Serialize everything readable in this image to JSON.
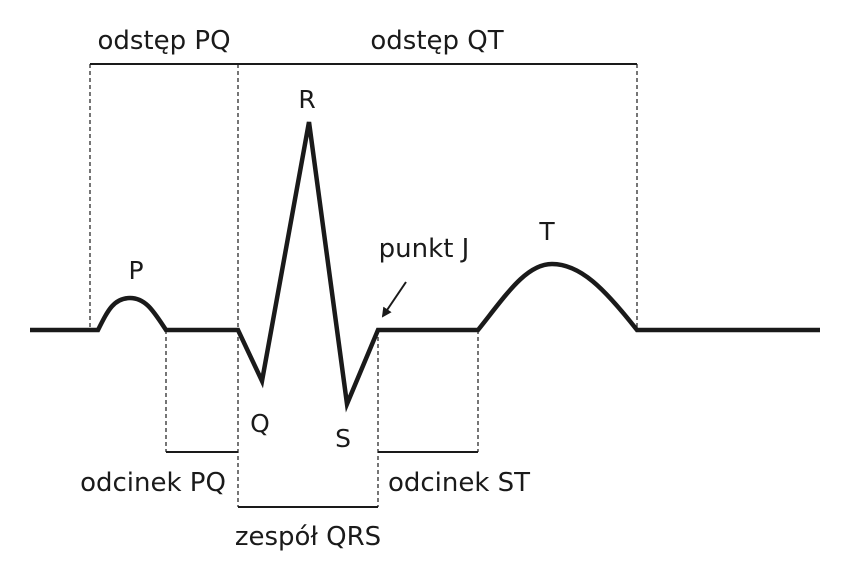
{
  "diagram": {
    "intervals": {
      "pq": "odstęp PQ",
      "qt": "odstęp QT"
    },
    "waves": {
      "p": "P",
      "q": "Q",
      "r": "R",
      "s": "S",
      "t": "T"
    },
    "j_point": "punkt J",
    "segments": {
      "pq": "odcinek PQ",
      "st": "odcinek ST"
    },
    "complex": {
      "qrs": "zespół QRS"
    },
    "colors": {
      "ink": "#1a1a1a",
      "background": "#ffffff"
    }
  }
}
